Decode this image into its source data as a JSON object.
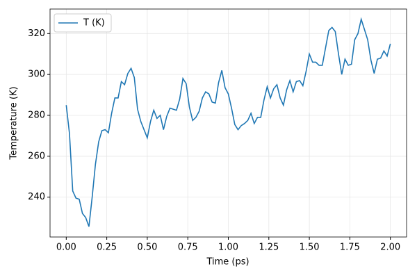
{
  "chart_data": {
    "type": "line",
    "x_label": "Time (ps)",
    "y_label": "Temperature (K)",
    "x": [
      0,
      0.02,
      0.04,
      0.06,
      0.08,
      0.1,
      0.12,
      0.14,
      0.16,
      0.18,
      0.2,
      0.22,
      0.24,
      0.26,
      0.28,
      0.3,
      0.32,
      0.34,
      0.36,
      0.38,
      0.4,
      0.42,
      0.44,
      0.46,
      0.48,
      0.5,
      0.52,
      0.54,
      0.56,
      0.58,
      0.6,
      0.62,
      0.64,
      0.66,
      0.68,
      0.7,
      0.72,
      0.74,
      0.76,
      0.78,
      0.8,
      0.82,
      0.84,
      0.86,
      0.88,
      0.9,
      0.92,
      0.94,
      0.96,
      0.98,
      1,
      1.02,
      1.04,
      1.06,
      1.08,
      1.1,
      1.12,
      1.14,
      1.16,
      1.18,
      1.2,
      1.22,
      1.24,
      1.26,
      1.28,
      1.3,
      1.32,
      1.34,
      1.36,
      1.38,
      1.4,
      1.42,
      1.44,
      1.46,
      1.48,
      1.5,
      1.52,
      1.54,
      1.56,
      1.58,
      1.6,
      1.62,
      1.64,
      1.66,
      1.68,
      1.7,
      1.72,
      1.74,
      1.76,
      1.78,
      1.8,
      1.82,
      1.84,
      1.86,
      1.88,
      1.9,
      1.92,
      1.94,
      1.96,
      1.98,
      2
    ],
    "series": [
      {
        "name": "T (K)",
        "color": "#1f77b4",
        "values": [
          285,
          271,
          243,
          239.5,
          239,
          232,
          230,
          225.6,
          240,
          256,
          267,
          272.5,
          273,
          271.5,
          281,
          288.5,
          288.5,
          296.5,
          295,
          300.5,
          303,
          298.5,
          283,
          277,
          273,
          269,
          277,
          282.5,
          278.5,
          280,
          273,
          279.5,
          283.5,
          283,
          282.5,
          288,
          298,
          295.5,
          284,
          277.5,
          279,
          282,
          288.5,
          291.5,
          290.5,
          286.5,
          286,
          296,
          302,
          293.5,
          290.5,
          283.5,
          275.5,
          273,
          275,
          276,
          277.5,
          281,
          276,
          279,
          279,
          287.5,
          294,
          288.5,
          293,
          295,
          288.5,
          285,
          292.5,
          297,
          291.5,
          296.5,
          297,
          294.5,
          301.5,
          310,
          306,
          306,
          304.5,
          304.5,
          313,
          321.5,
          323,
          321,
          310,
          300,
          307.5,
          304.5,
          305,
          317,
          320,
          327,
          322,
          317,
          307,
          300.5,
          307.5,
          308,
          311.5,
          309,
          315
        ]
      }
    ],
    "xlim": [
      -0.1,
      2.1
    ],
    "xticks": [
      {
        "value": 0,
        "label": "0.00"
      },
      {
        "value": 0.25,
        "label": "0.25"
      },
      {
        "value": 0.5,
        "label": "0.50"
      },
      {
        "value": 0.75,
        "label": "0.75"
      },
      {
        "value": 1,
        "label": "1.00"
      },
      {
        "value": 1.25,
        "label": "1.25"
      },
      {
        "value": 1.5,
        "label": "1.50"
      },
      {
        "value": 1.75,
        "label": "1.75"
      },
      {
        "value": 2,
        "label": "2.00"
      }
    ],
    "ylim": [
      220.5,
      332
    ],
    "yticks": [
      240,
      260,
      280,
      300,
      320
    ],
    "grid": true,
    "legend": "upper-left"
  }
}
